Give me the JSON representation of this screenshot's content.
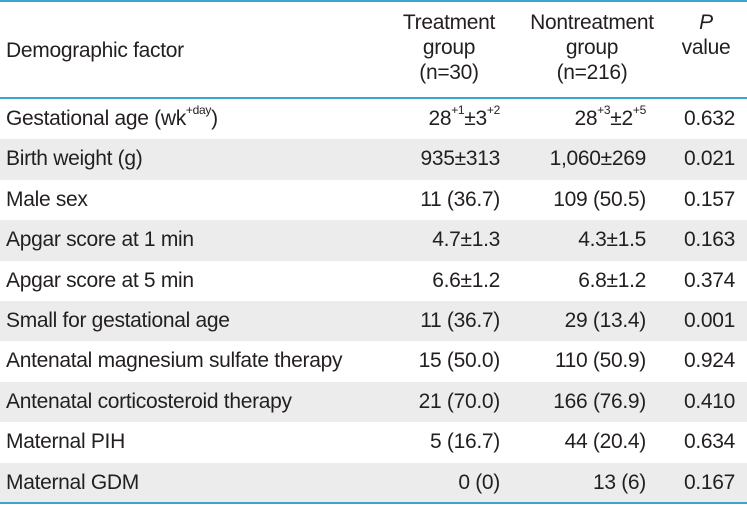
{
  "header": {
    "factor": "Demographic factor",
    "treatment": [
      "Treatment",
      "group",
      "(n=30)"
    ],
    "nontreatment": [
      "Nontreatment",
      "group",
      "(n=216)"
    ],
    "p_italic": "P",
    "p_rest": "value"
  },
  "rows": [
    {
      "factor": "Gestational age (wk",
      "factor_sup": "+day",
      "factor_tail": ")",
      "treatment": "28",
      "treatment_sup1": "+1",
      "treatment_mid": "±3",
      "treatment_sup2": "+2",
      "nontreatment": "28",
      "nontreatment_sup1": "+3",
      "nontreatment_mid": "±2",
      "nontreatment_sup2": "+5",
      "p": "0.632"
    },
    {
      "factor": "Birth weight (g)",
      "treatment": "935±313",
      "nontreatment": "1,060±269",
      "p": "0.021"
    },
    {
      "factor": "Male sex",
      "treatment": "11 (36.7)",
      "nontreatment": "109 (50.5)",
      "p": "0.157"
    },
    {
      "factor": "Apgar score at 1 min",
      "treatment": "4.7±1.3",
      "nontreatment": "4.3±1.5",
      "p": "0.163"
    },
    {
      "factor": "Apgar score at 5 min",
      "treatment": "6.6±1.2",
      "nontreatment": "6.8±1.2",
      "p": "0.374"
    },
    {
      "factor": "Small for gestational age",
      "treatment": "11 (36.7)",
      "nontreatment": "29 (13.4)",
      "p": "0.001"
    },
    {
      "factor": "Antenatal magnesium sulfate therapy",
      "treatment": "15 (50.0)",
      "nontreatment": "110 (50.9)",
      "p": "0.924"
    },
    {
      "factor": "Antenatal corticosteroid therapy",
      "treatment": "21 (70.0)",
      "nontreatment": "166 (76.9)",
      "p": "0.410"
    },
    {
      "factor": "Maternal PIH",
      "treatment": "5 (16.7)",
      "nontreatment": "44 (20.4)",
      "p": "0.634"
    },
    {
      "factor": "Maternal GDM",
      "treatment": "0 (0)",
      "nontreatment": "13 (6)",
      "p": "0.167"
    }
  ],
  "colors": {
    "rule": "#3aa6cf",
    "shade": "#ececed",
    "text": "#231f20"
  }
}
